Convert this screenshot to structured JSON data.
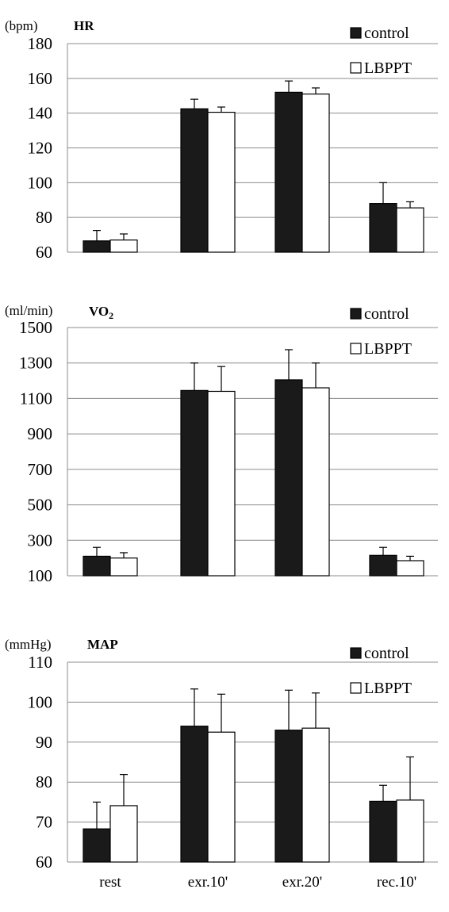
{
  "chart_data": [
    {
      "type": "bar",
      "title": "HR",
      "unit": "(bpm)",
      "categories": [
        "rest",
        "exr.10'",
        "exr.20'",
        "rec.10'"
      ],
      "ylim": [
        60,
        180
      ],
      "yticks": [
        60,
        80,
        100,
        120,
        140,
        160,
        180
      ],
      "grid": true,
      "legend_position": "top-right",
      "series": [
        {
          "name": "control",
          "values": [
            66.5,
            142.5,
            152,
            88
          ],
          "errors": [
            6,
            5.5,
            6.5,
            12
          ],
          "color": "#1a1a1a"
        },
        {
          "name": "LBPPT",
          "values": [
            67,
            140.5,
            151,
            85.5
          ],
          "errors": [
            3.5,
            3,
            3.5,
            3.5
          ],
          "color": "#ffffff"
        }
      ]
    },
    {
      "type": "bar",
      "title": "VO",
      "title_sub": "2",
      "unit": "(ml/min)",
      "categories": [
        "rest",
        "exr.10'",
        "exr.20'",
        "rec.10'"
      ],
      "ylim": [
        100,
        1500
      ],
      "yticks": [
        100,
        300,
        500,
        700,
        900,
        1100,
        1300,
        1500
      ],
      "grid": true,
      "legend_position": "top-right",
      "series": [
        {
          "name": "control",
          "values": [
            210,
            1145,
            1205,
            215
          ],
          "errors": [
            50,
            155,
            170,
            45
          ],
          "color": "#1a1a1a"
        },
        {
          "name": "LBPPT",
          "values": [
            200,
            1140,
            1160,
            185
          ],
          "errors": [
            30,
            140,
            140,
            25
          ],
          "color": "#ffffff"
        }
      ]
    },
    {
      "type": "bar",
      "title": "MAP",
      "unit": "(mmHg)",
      "categories": [
        "rest",
        "exr.10'",
        "exr.20'",
        "rec.10'"
      ],
      "ylim": [
        60,
        110
      ],
      "yticks": [
        60,
        70,
        80,
        90,
        100,
        110
      ],
      "grid": true,
      "legend_position": "top-right",
      "series": [
        {
          "name": "control",
          "values": [
            68.3,
            94,
            93,
            75.2
          ],
          "errors": [
            6.7,
            9.3,
            10,
            4
          ],
          "color": "#1a1a1a"
        },
        {
          "name": "LBPPT",
          "values": [
            74.1,
            92.5,
            93.5,
            75.5
          ],
          "errors": [
            7.8,
            9.5,
            8.8,
            10.8
          ],
          "color": "#ffffff"
        }
      ]
    }
  ]
}
